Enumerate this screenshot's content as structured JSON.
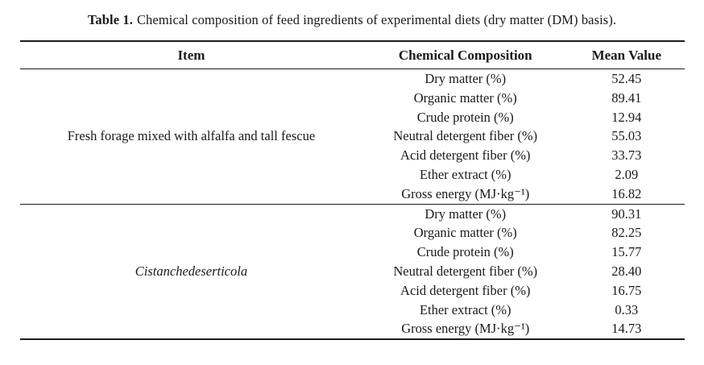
{
  "title": {
    "label": "Table 1.",
    "text": "Chemical composition of feed ingredients of experimental diets (dry matter (DM) basis)."
  },
  "table": {
    "headers": [
      "Item",
      "Chemical Composition",
      "Mean Value"
    ],
    "groups": [
      {
        "item": "Fresh forage mixed with alfalfa and tall fescue",
        "rows": [
          {
            "composition": "Dry matter (%)",
            "value": "52.45"
          },
          {
            "composition": "Organic matter (%)",
            "value": "89.41"
          },
          {
            "composition": "Crude protein (%)",
            "value": "12.94"
          },
          {
            "composition": "Neutral detergent fiber (%)",
            "value": "55.03"
          },
          {
            "composition": "Acid detergent fiber (%)",
            "value": "33.73"
          },
          {
            "composition": "Ether extract (%)",
            "value": "2.09"
          },
          {
            "composition": "Gross energy (MJ·kg⁻¹)",
            "value": "16.82"
          }
        ]
      },
      {
        "item": "Cistanchedeserticola",
        "rows": [
          {
            "composition": "Dry matter (%)",
            "value": "90.31"
          },
          {
            "composition": "Organic matter (%)",
            "value": "82.25"
          },
          {
            "composition": "Crude protein (%)",
            "value": "15.77"
          },
          {
            "composition": "Neutral detergent fiber (%)",
            "value": "28.40"
          },
          {
            "composition": "Acid detergent fiber (%)",
            "value": "16.75"
          },
          {
            "composition": "Ether extract (%)",
            "value": "0.33"
          },
          {
            "composition": "Gross energy (MJ·kg⁻¹)",
            "value": "14.73"
          }
        ]
      }
    ]
  },
  "colors": {
    "text": "#1a1a1a",
    "rule": "#1c1c1c",
    "background": "#ffffff"
  }
}
